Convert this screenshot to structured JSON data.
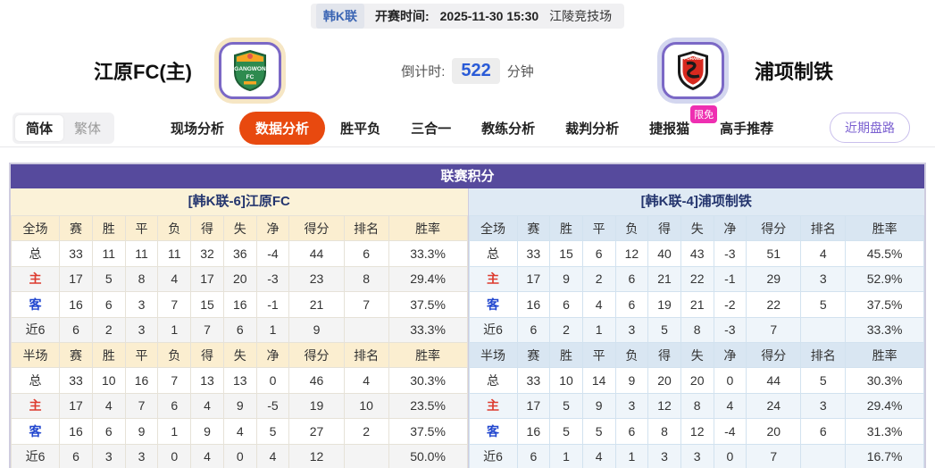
{
  "top_bar": {
    "league": "韩K联",
    "kickoff_label": "开赛时间:",
    "kickoff_time": "2025-11-30 15:30",
    "venue": "江陵竞技场"
  },
  "header": {
    "home_team": "江原FC(主)",
    "away_team": "浦项制铁",
    "home_crest": "gangwon-fc-crest",
    "away_crest": "pohang-steelers-crest",
    "countdown_label": "倒计时:",
    "countdown_value": "522",
    "countdown_unit": "分钟"
  },
  "nav": {
    "lang_toggle": [
      {
        "label": "简体",
        "active": true
      },
      {
        "label": "繁体",
        "active": false
      }
    ],
    "tabs": [
      {
        "label": "现场分析",
        "active": false
      },
      {
        "label": "数据分析",
        "active": true
      },
      {
        "label": "胜平负",
        "active": false
      },
      {
        "label": "三合一",
        "active": false
      },
      {
        "label": "教练分析",
        "active": false
      },
      {
        "label": "裁判分析",
        "active": false
      },
      {
        "label": "捷报猫",
        "active": false,
        "badge": "限免"
      },
      {
        "label": "高手推荐",
        "active": false
      }
    ],
    "right_button": "近期盘路"
  },
  "league_table": {
    "title": "联赛积分",
    "columns_full": [
      "全场",
      "赛",
      "胜",
      "平",
      "负",
      "得",
      "失",
      "净",
      "得分",
      "排名",
      "胜率"
    ],
    "columns_half": [
      "半场",
      "赛",
      "胜",
      "平",
      "负",
      "得",
      "失",
      "净",
      "得分",
      "排名",
      "胜率"
    ],
    "home": {
      "header": "[韩K联-6]江原FC",
      "full": [
        [
          "总",
          "33",
          "11",
          "11",
          "11",
          "32",
          "36",
          "-4",
          "44",
          "6",
          "33.3%"
        ],
        [
          "主",
          "17",
          "5",
          "8",
          "4",
          "17",
          "20",
          "-3",
          "23",
          "8",
          "29.4%"
        ],
        [
          "客",
          "16",
          "6",
          "3",
          "7",
          "15",
          "16",
          "-1",
          "21",
          "7",
          "37.5%"
        ],
        [
          "近6",
          "6",
          "2",
          "3",
          "1",
          "7",
          "6",
          "1",
          "9",
          "",
          "33.3%"
        ]
      ],
      "half": [
        [
          "总",
          "33",
          "10",
          "16",
          "7",
          "13",
          "13",
          "0",
          "46",
          "4",
          "30.3%"
        ],
        [
          "主",
          "17",
          "4",
          "7",
          "6",
          "4",
          "9",
          "-5",
          "19",
          "10",
          "23.5%"
        ],
        [
          "客",
          "16",
          "6",
          "9",
          "1",
          "9",
          "4",
          "5",
          "27",
          "2",
          "37.5%"
        ],
        [
          "近6",
          "6",
          "3",
          "3",
          "0",
          "4",
          "0",
          "4",
          "12",
          "",
          "50.0%"
        ]
      ]
    },
    "away": {
      "header": "[韩K联-4]浦项制铁",
      "full": [
        [
          "总",
          "33",
          "15",
          "6",
          "12",
          "40",
          "43",
          "-3",
          "51",
          "4",
          "45.5%"
        ],
        [
          "主",
          "17",
          "9",
          "2",
          "6",
          "21",
          "22",
          "-1",
          "29",
          "3",
          "52.9%"
        ],
        [
          "客",
          "16",
          "6",
          "4",
          "6",
          "19",
          "21",
          "-2",
          "22",
          "5",
          "37.5%"
        ],
        [
          "近6",
          "6",
          "2",
          "1",
          "3",
          "5",
          "8",
          "-3",
          "7",
          "",
          "33.3%"
        ]
      ],
      "half": [
        [
          "总",
          "33",
          "10",
          "14",
          "9",
          "20",
          "20",
          "0",
          "44",
          "5",
          "30.3%"
        ],
        [
          "主",
          "17",
          "5",
          "9",
          "3",
          "12",
          "8",
          "4",
          "24",
          "3",
          "29.4%"
        ],
        [
          "客",
          "16",
          "5",
          "5",
          "6",
          "8",
          "12",
          "-4",
          "20",
          "6",
          "31.3%"
        ],
        [
          "近6",
          "6",
          "1",
          "4",
          "1",
          "3",
          "3",
          "0",
          "7",
          "",
          "16.7%"
        ]
      ]
    }
  },
  "colors": {
    "accent_purple": "#564a9d",
    "active_tab_orange": "#e8490f",
    "badge_pink": "#ee2fb1",
    "countdown_blue": "#2a5bd7",
    "home_band_bg": "#fbf2d8",
    "away_band_bg": "#dfeaf4",
    "home_label_red": "#dd3b2f",
    "away_label_blue": "#2247cf"
  }
}
